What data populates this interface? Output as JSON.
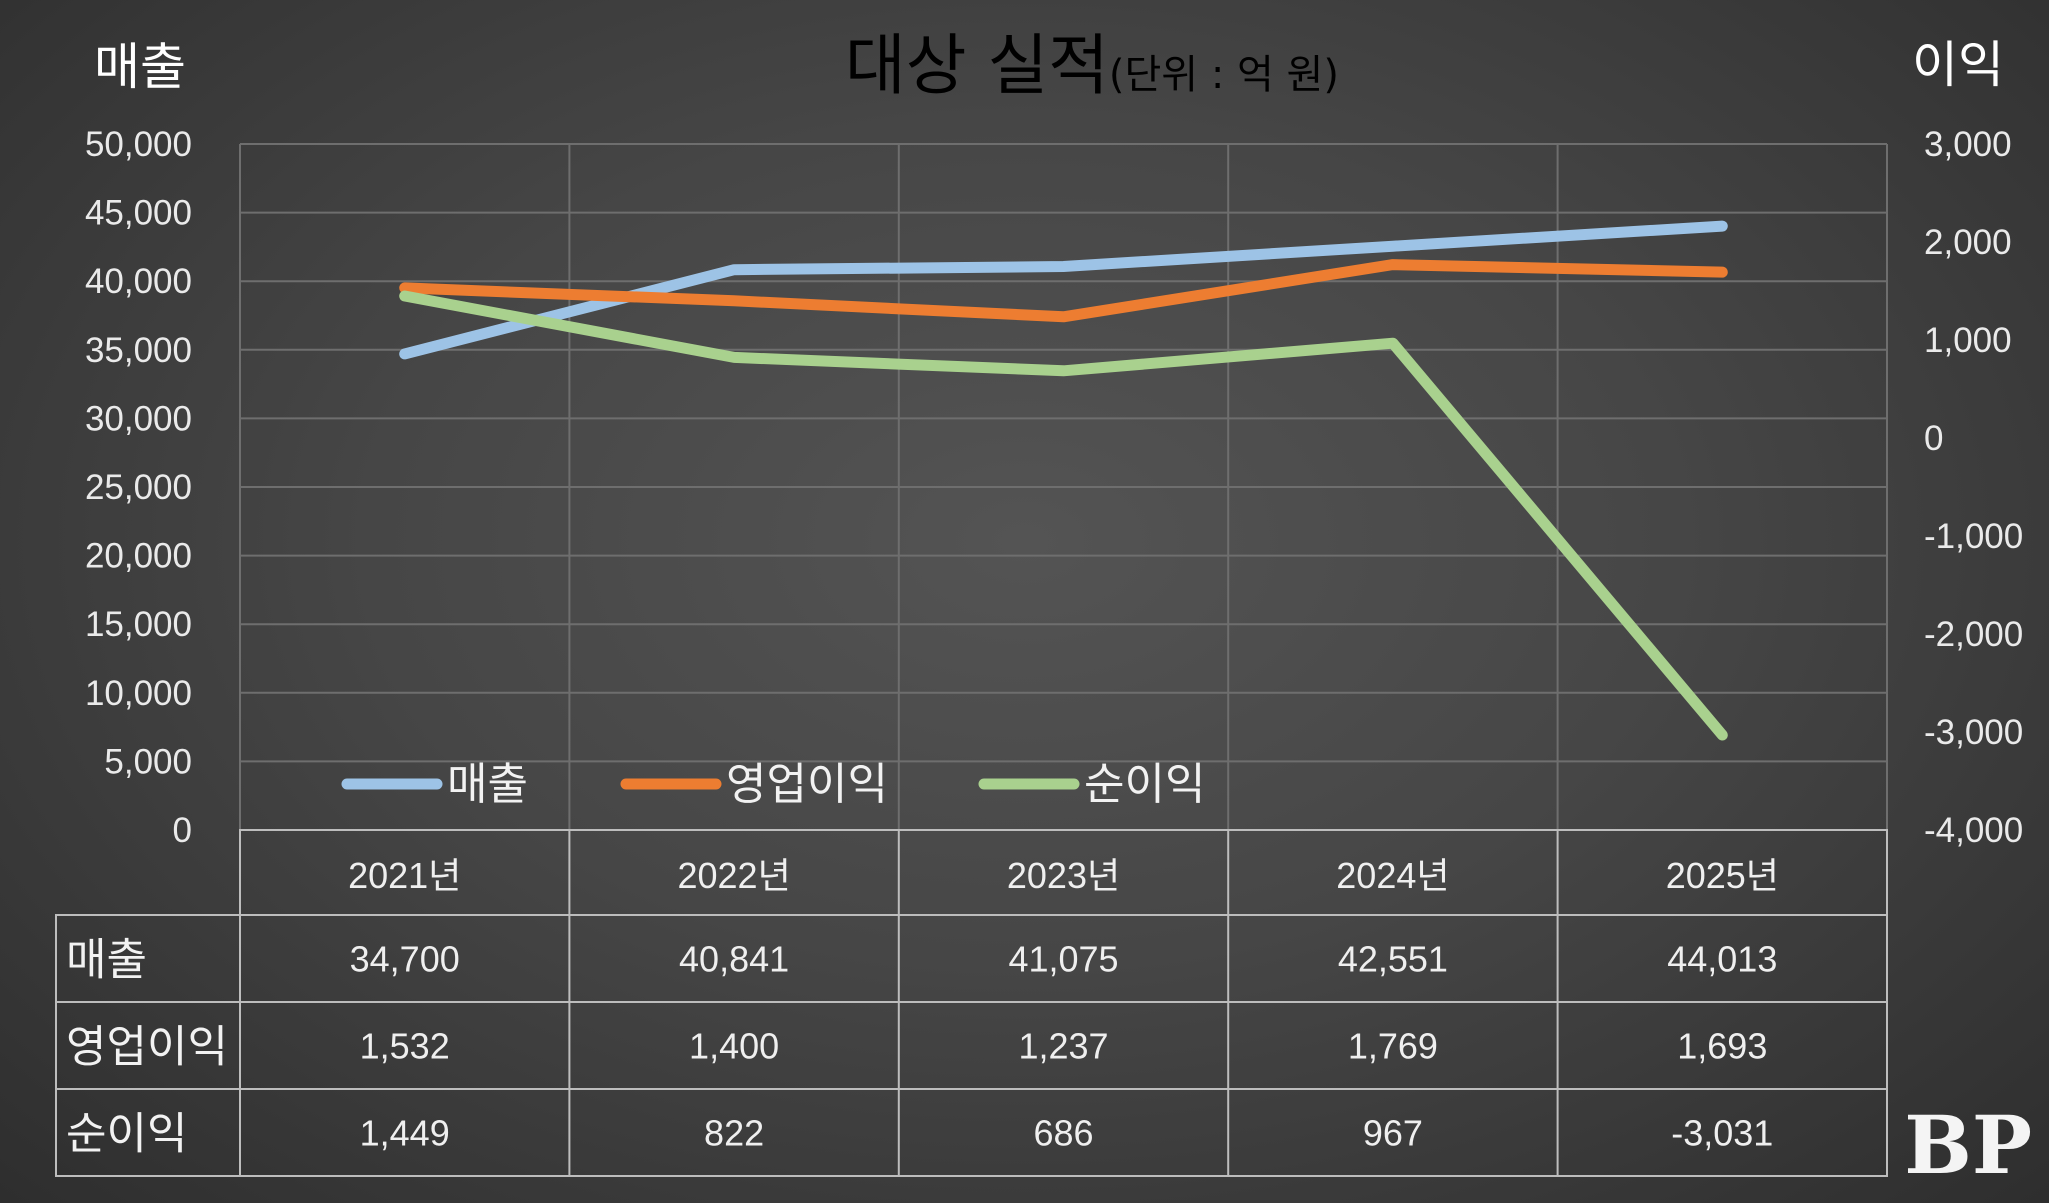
{
  "title": "대상 실적",
  "unit_label": "(단위 : 억 원)",
  "left_axis_title": "매출",
  "right_axis_title": "이익",
  "watermark": "BP",
  "colors": {
    "매출": "#9dc3e6",
    "영업이익": "#ed7d31",
    "순이익": "#a9d18e",
    "background": "#474747"
  },
  "chart_data": {
    "type": "line",
    "categories": [
      "2021년",
      "2022년",
      "2023년",
      "2024년",
      "2025년"
    ],
    "series": [
      {
        "name": "매출",
        "axis": "left",
        "values": [
          34700,
          40841,
          41075,
          42551,
          44013
        ],
        "labels": [
          "34,700",
          "40,841",
          "41,075",
          "42,551",
          "44,013"
        ]
      },
      {
        "name": "영업이익",
        "axis": "right",
        "values": [
          1532,
          1400,
          1237,
          1769,
          1693
        ],
        "labels": [
          "1,532",
          "1,400",
          "1,237",
          "1,769",
          "1,693"
        ]
      },
      {
        "name": "순이익",
        "axis": "right",
        "values": [
          1449,
          822,
          686,
          967,
          -3031
        ],
        "labels": [
          "1,449",
          "822",
          "686",
          "967",
          "-3,031"
        ]
      }
    ],
    "left_axis": {
      "min": 0,
      "max": 50000,
      "step": 5000,
      "tick_labels": [
        "0",
        "5,000",
        "10,000",
        "15,000",
        "20,000",
        "25,000",
        "30,000",
        "35,000",
        "40,000",
        "45,000",
        "50,000"
      ]
    },
    "right_axis": {
      "min": -4000,
      "max": 3000,
      "step": 1000,
      "tick_labels": [
        "-4,000",
        "-3,000",
        "-2,000",
        "-1,000",
        "0",
        "1,000",
        "2,000",
        "3,000"
      ]
    },
    "grid": true,
    "legend_placement": "bottom-left inside plot",
    "data_table": true
  }
}
